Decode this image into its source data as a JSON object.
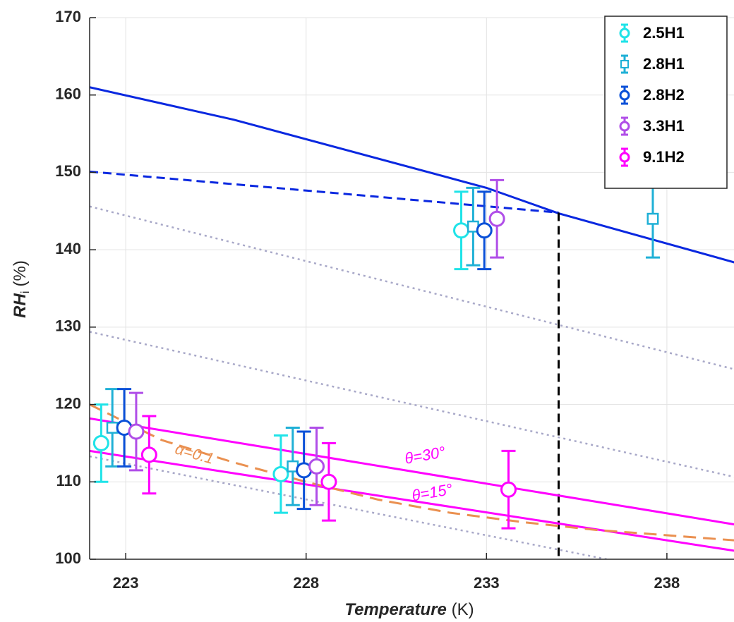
{
  "chart_data": {
    "type": "errorbar",
    "xlabel": [
      "Temperature",
      "(K)"
    ],
    "ylabel": [
      "RH",
      "i",
      "(%)"
    ],
    "xlim": [
      222,
      239.86
    ],
    "ylim": [
      100,
      170
    ],
    "xticks": [
      223,
      228,
      233,
      238
    ],
    "yticks": [
      100,
      110,
      120,
      130,
      140,
      150,
      160,
      170
    ],
    "grid": true,
    "legend": "upper right",
    "series": [
      {
        "name": "2.5H1",
        "color": "#1fe3e8",
        "marker": "circle",
        "x": [
          222.32,
          227.3,
          232.3
        ],
        "values": [
          115,
          111,
          142.5
        ],
        "errors": [
          5,
          5,
          5
        ]
      },
      {
        "name": "2.8H1",
        "color": "#1fb0d6",
        "marker": "square",
        "x": [
          222.63,
          227.63,
          232.63,
          237.61
        ],
        "values": [
          117,
          112,
          143,
          144
        ],
        "errors": [
          5,
          5,
          5,
          5
        ]
      },
      {
        "name": "2.8H2",
        "color": "#0a50d8",
        "marker": "circle",
        "x": [
          222.96,
          227.94,
          232.94
        ],
        "values": [
          117,
          111.5,
          142.5
        ],
        "errors": [
          5,
          5,
          5
        ]
      },
      {
        "name": "3.3H1",
        "color": "#b04ee8",
        "marker": "circle",
        "x": [
          223.29,
          228.29,
          233.29
        ],
        "values": [
          116.5,
          112,
          144
        ],
        "errors": [
          5,
          5,
          5
        ]
      },
      {
        "name": "9.1H2",
        "color": "#ff00ff",
        "marker": "circle",
        "x": [
          223.65,
          228.63,
          233.61
        ],
        "values": [
          113.5,
          110,
          109
        ],
        "errors": [
          5,
          5,
          5
        ]
      }
    ],
    "lines": [
      {
        "color": "#0a28e0",
        "dash": "solid",
        "x": [
          222,
          226,
          233,
          235,
          240
        ],
        "values": [
          161,
          156.8,
          148,
          144.7,
          138.2
        ]
      },
      {
        "color": "#0a28e0",
        "dash": "dashed",
        "x": [
          222,
          235
        ],
        "values": [
          150.1,
          144.8
        ]
      },
      {
        "color": "#000000",
        "dash": "dashed",
        "x": [
          235,
          235
        ],
        "values": [
          144.8,
          100
        ]
      },
      {
        "color": "#a8a8c8",
        "dash": "dotted",
        "x": [
          222,
          240
        ],
        "values": [
          145.6,
          124.4
        ]
      },
      {
        "color": "#a8a8c8",
        "dash": "dotted",
        "x": [
          222,
          240
        ],
        "values": [
          129.4,
          110.5
        ]
      },
      {
        "color": "#a8a8c8",
        "dash": "dotted",
        "x": [
          222,
          236.33
        ],
        "values": [
          113.3,
          100
        ]
      },
      {
        "color": "#ff00ff",
        "dash": "solid",
        "x": [
          222,
          240
        ],
        "values": [
          118.2,
          104.4
        ]
      },
      {
        "color": "#ff00ff",
        "dash": "solid",
        "x": [
          222,
          240
        ],
        "values": [
          114,
          101
        ]
      },
      {
        "color": "#ea9050",
        "dash": "longdash",
        "x": [
          222,
          224,
          226,
          228,
          230,
          232,
          234,
          236,
          240
        ],
        "values": [
          120,
          115.4,
          112.5,
          110,
          107.7,
          106,
          104.8,
          103.8,
          102.4
        ]
      }
    ],
    "annotations": [
      {
        "text": "θ=30°",
        "color": "#ff00ff",
        "x": 231.3,
        "y": 113.3,
        "angle": -10
      },
      {
        "text": "θ=15°",
        "color": "#ff00ff",
        "x": 231.5,
        "y": 108.5,
        "angle": -10
      },
      {
        "text": "α=0.1",
        "color": "#ea9050",
        "x": 224.9,
        "y": 113.5,
        "angle": 16
      }
    ]
  }
}
